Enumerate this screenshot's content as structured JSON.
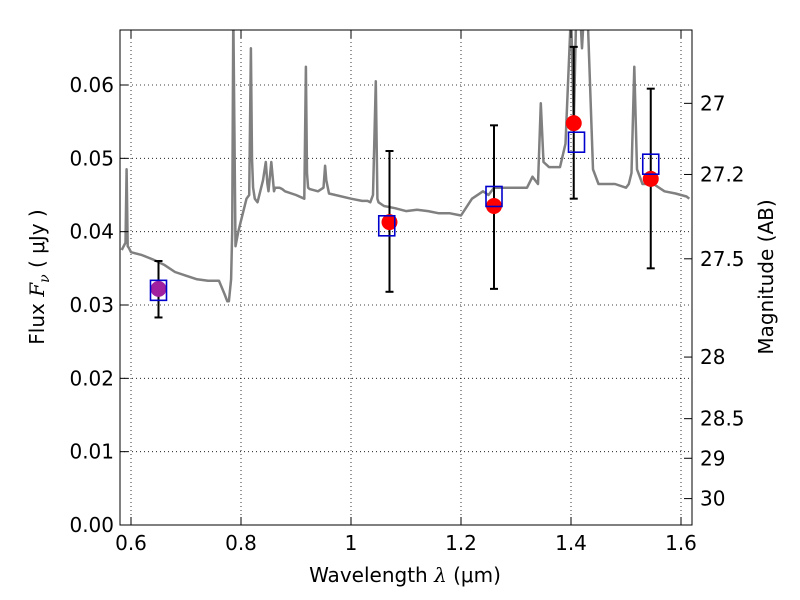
{
  "chart_data": {
    "type": "scatter",
    "title": "",
    "x_axis": {
      "label_prefix": "Wavelength  ",
      "label_symbol": "λ",
      "label_suffix": " (μm)",
      "range": [
        0.58,
        1.62
      ],
      "ticks": [
        0.6,
        0.8,
        1.0,
        1.2,
        1.4,
        1.6
      ],
      "tick_labels": [
        "0.6",
        "0.8",
        "1",
        "1.2",
        "1.4",
        "1.6"
      ]
    },
    "y_axis": {
      "label_prefix": "Flux  ",
      "label_symbol": "F",
      "label_subscript": "ν",
      "label_suffix": "  ( μJy )",
      "range": [
        0.0,
        0.0675
      ],
      "ticks": [
        0.0,
        0.01,
        0.02,
        0.03,
        0.04,
        0.05,
        0.06
      ],
      "tick_labels": [
        "0.00",
        "0.01",
        "0.02",
        "0.03",
        "0.04",
        "0.05",
        "0.06"
      ]
    },
    "y2_axis": {
      "label": "Magnitude (AB)",
      "ticks": [
        {
          "label": "27",
          "flux": 0.0575
        },
        {
          "label": "27.2",
          "flux": 0.0478
        },
        {
          "label": "27.5",
          "flux": 0.0363
        },
        {
          "label": "28",
          "flux": 0.0229
        },
        {
          "label": "28.5",
          "flux": 0.0145
        },
        {
          "label": "29",
          "flux": 0.0091
        },
        {
          "label": "30",
          "flux": 0.0036
        }
      ]
    },
    "grid": true,
    "colors": {
      "model": "#808080",
      "observed": "#000000",
      "observed_marker": "#ff0000",
      "model_box": "#0000cc",
      "first_marker": "#a020a0"
    },
    "model_spectrum": {
      "name": "",
      "x": [
        0.583,
        0.59,
        0.592,
        0.594,
        0.596,
        0.598,
        0.6,
        0.62,
        0.64,
        0.66,
        0.68,
        0.7,
        0.72,
        0.74,
        0.76,
        0.77,
        0.775,
        0.778,
        0.78,
        0.782,
        0.784,
        0.786,
        0.79,
        0.795,
        0.8,
        0.81,
        0.815,
        0.818,
        0.82,
        0.822,
        0.825,
        0.83,
        0.84,
        0.845,
        0.848,
        0.85,
        0.855,
        0.86,
        0.862,
        0.865,
        0.87,
        0.875,
        0.88,
        0.9,
        0.915,
        0.918,
        0.92,
        0.922,
        0.925,
        0.94,
        0.95,
        0.953,
        0.955,
        0.96,
        1.0,
        1.02,
        1.03,
        1.035,
        1.04,
        1.045,
        1.048,
        1.05,
        1.06,
        1.08,
        1.1,
        1.12,
        1.14,
        1.16,
        1.18,
        1.2,
        1.22,
        1.24,
        1.25,
        1.26,
        1.28,
        1.3,
        1.32,
        1.33,
        1.34,
        1.345,
        1.35,
        1.36,
        1.37,
        1.38,
        1.39,
        1.4,
        1.405,
        1.41,
        1.415,
        1.42,
        1.425,
        1.43,
        1.44,
        1.45,
        1.46,
        1.48,
        1.5,
        1.505,
        1.51,
        1.515,
        1.52,
        1.53,
        1.55,
        1.57,
        1.59,
        1.61,
        1.615
      ],
      "y": [
        0.0375,
        0.0385,
        0.0485,
        0.038,
        0.0378,
        0.0375,
        0.0372,
        0.0368,
        0.0362,
        0.0355,
        0.0345,
        0.034,
        0.0335,
        0.0333,
        0.0333,
        0.0315,
        0.0305,
        0.0305,
        0.032,
        0.0335,
        0.04,
        0.07,
        0.038,
        0.04,
        0.0415,
        0.0445,
        0.045,
        0.065,
        0.05,
        0.046,
        0.0445,
        0.044,
        0.047,
        0.0495,
        0.0465,
        0.0455,
        0.0495,
        0.0455,
        0.046,
        0.046,
        0.046,
        0.0458,
        0.0455,
        0.045,
        0.0445,
        0.0625,
        0.048,
        0.046,
        0.0458,
        0.0455,
        0.046,
        0.049,
        0.047,
        0.0452,
        0.0445,
        0.0442,
        0.0442,
        0.044,
        0.045,
        0.0605,
        0.0445,
        0.044,
        0.0435,
        0.0432,
        0.0428,
        0.043,
        0.0428,
        0.0425,
        0.0425,
        0.0422,
        0.0445,
        0.0455,
        0.045,
        0.046,
        0.046,
        0.046,
        0.046,
        0.0475,
        0.0465,
        0.0575,
        0.0495,
        0.0488,
        0.0488,
        0.0488,
        0.052,
        0.07,
        0.055,
        0.0715,
        0.072,
        0.065,
        0.072,
        0.07,
        0.0485,
        0.0465,
        0.0465,
        0.0465,
        0.046,
        0.0465,
        0.048,
        0.0625,
        0.0485,
        0.0465,
        0.0465,
        0.0455,
        0.0452,
        0.0448,
        0.0445
      ]
    },
    "observed": {
      "name": "",
      "x": [
        0.65,
        1.07,
        1.26,
        1.405,
        1.545
      ],
      "y": [
        0.0322,
        0.0413,
        0.0435,
        0.0548,
        0.0472
      ],
      "err_low": [
        0.0283,
        0.0318,
        0.0322,
        0.0445,
        0.035
      ],
      "err_high": [
        0.036,
        0.051,
        0.0545,
        0.0652,
        0.0595
      ]
    },
    "model_photometry": {
      "name": "",
      "x": [
        0.65,
        1.065,
        1.26,
        1.41,
        1.545
      ],
      "y": [
        0.032,
        0.0408,
        0.0448,
        0.0522,
        0.0492
      ]
    }
  }
}
